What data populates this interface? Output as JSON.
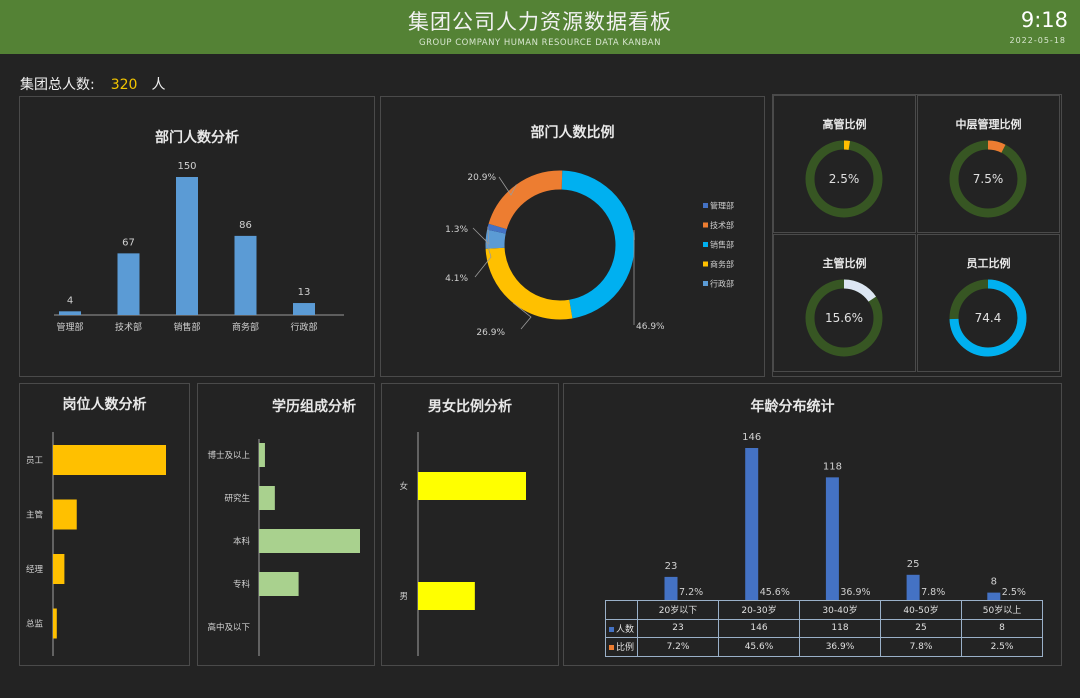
{
  "header": {
    "title": "集团公司人力资源数据看板",
    "subtitle": "GROUP COMPANY HUMAN RESOURCE DATA KANBAN",
    "time": "9:18",
    "date": "2022-05-18"
  },
  "total": {
    "label": "集团总人数:",
    "value": "320",
    "unit": "人"
  },
  "colors": {
    "header_bg": "#548235",
    "bar_blue": "#5b9bd5",
    "gold": "#ffc000",
    "light_green": "#a9d18e",
    "yellow": "#ffff00",
    "age_bar": "#4472c4",
    "ring_track": "#375623",
    "cyan": "#00b0f0",
    "orange": "#ed7d31"
  },
  "dept_bar": {
    "title": "部门人数分析",
    "chart_data": {
      "type": "bar",
      "categories": [
        "管理部",
        "技术部",
        "销售部",
        "商务部",
        "行政部"
      ],
      "values": [
        4,
        67,
        150,
        86,
        13
      ],
      "ylim": [
        0,
        150
      ]
    }
  },
  "dept_pie": {
    "title": "部门人数比例",
    "chart_data": {
      "type": "pie",
      "categories": [
        "管理部",
        "技术部",
        "销售部",
        "商务部",
        "行政部"
      ],
      "values": [
        1.3,
        20.9,
        46.9,
        26.9,
        4.1
      ],
      "labels": [
        "1.3%",
        "20.9%",
        "46.9%",
        "26.9%",
        "4.1%"
      ],
      "colors": [
        "#4472c4",
        "#ed7d31",
        "#00b0f0",
        "#ffc000",
        "#5b9bd5"
      ],
      "legend": "right"
    }
  },
  "rings": [
    {
      "title": "高管比例",
      "value": 2.5,
      "label": "2.5%",
      "color": "#ffc000"
    },
    {
      "title": "中层管理比例",
      "value": 7.5,
      "label": "7.5%",
      "color": "#ed7d31"
    },
    {
      "title": "主管比例",
      "value": 15.6,
      "label": "15.6%",
      "color": "#dce6f2"
    },
    {
      "title": "员工比例",
      "value": 74.4,
      "label": "74.4",
      "color": "#00b0f0"
    }
  ],
  "position_bar": {
    "title": "岗位人数分析",
    "chart_data": {
      "type": "bar",
      "orientation": "horizontal",
      "categories": [
        "员工",
        "主管",
        "经理",
        "总监"
      ],
      "values": [
        238,
        50,
        24,
        8
      ]
    }
  },
  "education_bar": {
    "title": "学历组成分析",
    "chart_data": {
      "type": "bar",
      "orientation": "horizontal",
      "categories": [
        "博士及以上",
        "研究生",
        "本科",
        "专科",
        "高中及以下"
      ],
      "values": [
        6,
        16,
        102,
        40,
        0
      ]
    }
  },
  "gender_bar": {
    "title": "男女比例分析",
    "chart_data": {
      "type": "bar",
      "orientation": "horizontal",
      "categories": [
        "女",
        "男"
      ],
      "values": [
        190,
        100
      ]
    }
  },
  "age_chart": {
    "title": "年龄分布统计",
    "chart_data": {
      "type": "bar",
      "categories": [
        "20岁以下",
        "20-30岁",
        "30-40岁",
        "40-50岁",
        "50岁以上"
      ],
      "series": [
        {
          "name": "人数",
          "values": [
            23,
            146,
            118,
            25,
            8
          ],
          "labels": [
            "23",
            "146",
            "118",
            "25",
            "8"
          ]
        },
        {
          "name": "比例",
          "values": [
            7.2,
            45.6,
            36.9,
            7.8,
            2.5
          ],
          "labels": [
            "7.2%",
            "45.6%",
            "36.9%",
            "7.8%",
            "2.5%"
          ]
        }
      ]
    }
  }
}
